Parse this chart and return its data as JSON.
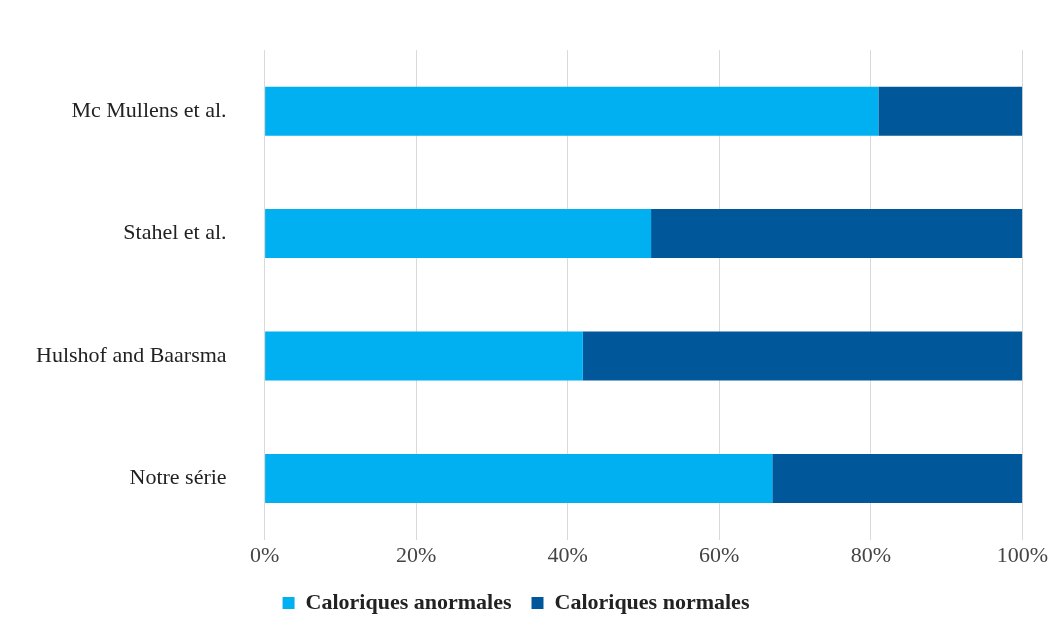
{
  "chart_data": {
    "type": "bar",
    "orientation": "horizontal",
    "stacked": true,
    "categories": [
      "Mc Mullens et al.",
      "Stahel et al.",
      "Hulshof and Baarsma",
      "Notre série"
    ],
    "series": [
      {
        "name": "Caloriques anormales",
        "color": "#00b0f0",
        "values": [
          81,
          51,
          42,
          67
        ]
      },
      {
        "name": "Caloriques normales",
        "color": "#00589a",
        "values": [
          19,
          49,
          58,
          33
        ]
      }
    ],
    "xlim": [
      0,
      100
    ],
    "xticks": [
      {
        "value": 0,
        "label": "0%"
      },
      {
        "value": 20,
        "label": "20%"
      },
      {
        "value": 40,
        "label": "40%"
      },
      {
        "value": 60,
        "label": "60%"
      },
      {
        "value": 80,
        "label": "80%"
      },
      {
        "value": 100,
        "label": "100%"
      }
    ],
    "grid": "x",
    "legend": "bottom"
  }
}
